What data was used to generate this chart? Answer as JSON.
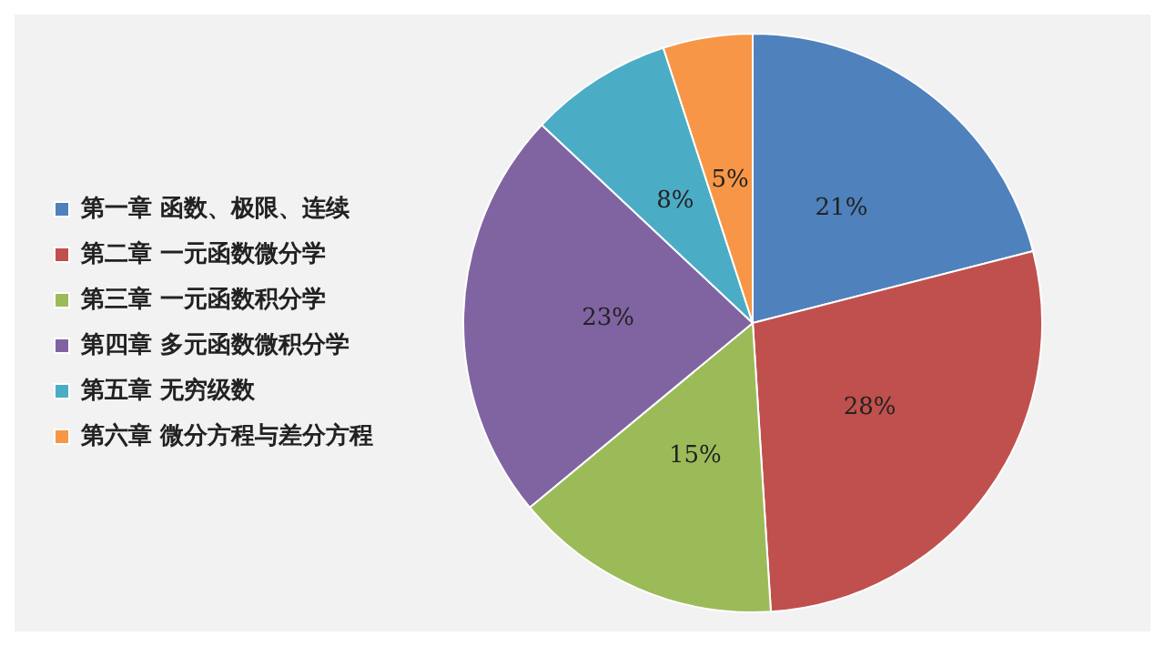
{
  "chart_data": {
    "type": "pie",
    "categories": [
      "第一章 函数、极限、连续",
      "第二章 一元函数微分学",
      "第三章 一元函数积分学",
      "第四章 多元函数微积分学",
      "第五章 无穷级数",
      "第六章 微分方程与差分方程"
    ],
    "values": [
      21,
      28,
      15,
      23,
      8,
      5
    ],
    "colors": [
      "#4f81bd",
      "#c0504d",
      "#9bbb59",
      "#8064a2",
      "#4bacc6",
      "#f79646"
    ],
    "value_labels": [
      "21%",
      "28%",
      "15%",
      "23%",
      "8%",
      "5%"
    ],
    "legend": "left"
  }
}
